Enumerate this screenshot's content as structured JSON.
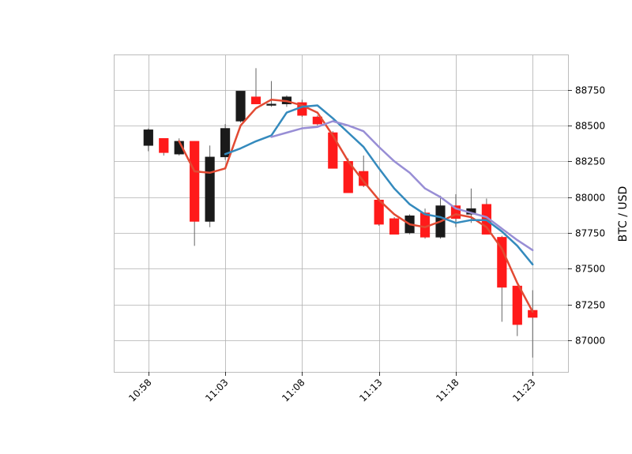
{
  "chart_data": {
    "type": "candlestick",
    "ylabel": "BTC / USD",
    "yaxis_side": "right",
    "ylim": [
      86780,
      88990
    ],
    "yticks": [
      87000,
      87250,
      87500,
      87750,
      88000,
      88250,
      88500,
      88750
    ],
    "ytick_labels": [
      "87000",
      "87250",
      "87500",
      "87750",
      "88000",
      "88250",
      "88500",
      "88750"
    ],
    "xlim": [
      -2.2,
      27.3
    ],
    "xticks": [
      0,
      5,
      10,
      15,
      20,
      25
    ],
    "xtick_labels": [
      "10:58",
      "11:03",
      "11:08",
      "11:13",
      "11:18",
      "11:23"
    ],
    "grid": true,
    "colors": {
      "up": "#1a1a1a",
      "down": "#ff1a1a",
      "wick": "#666666",
      "ma_short": "#e24a33",
      "ma_mid": "#348abd",
      "ma_long": "#988ed5",
      "grid": "#b0b0b0",
      "frame": "#bcbcbc"
    },
    "candles": [
      {
        "time": "10:58",
        "open": 88360,
        "high": 88480,
        "low": 88320,
        "close": 88470
      },
      {
        "time": "10:59",
        "open": 88410,
        "high": 88410,
        "low": 88290,
        "close": 88310
      },
      {
        "time": "11:00",
        "open": 88300,
        "high": 88410,
        "low": 88290,
        "close": 88390
      },
      {
        "time": "11:01",
        "open": 88390,
        "high": 88390,
        "low": 87660,
        "close": 87830
      },
      {
        "time": "11:02",
        "open": 87830,
        "high": 88360,
        "low": 87790,
        "close": 88280
      },
      {
        "time": "11:03",
        "open": 88280,
        "high": 88510,
        "low": 88260,
        "close": 88480
      },
      {
        "time": "11:04",
        "open": 88530,
        "high": 88740,
        "low": 88520,
        "close": 88740
      },
      {
        "time": "11:05",
        "open": 88700,
        "high": 88900,
        "low": 88650,
        "close": 88650
      },
      {
        "time": "11:06",
        "open": 88640,
        "high": 88810,
        "low": 88630,
        "close": 88650
      },
      {
        "time": "11:07",
        "open": 88650,
        "high": 88710,
        "low": 88630,
        "close": 88700
      },
      {
        "time": "11:08",
        "open": 88660,
        "high": 88680,
        "low": 88560,
        "close": 88570
      },
      {
        "time": "11:09",
        "open": 88560,
        "high": 88570,
        "low": 88500,
        "close": 88510
      },
      {
        "time": "11:10",
        "open": 88450,
        "high": 88460,
        "low": 88200,
        "close": 88200
      },
      {
        "time": "11:11",
        "open": 88250,
        "high": 88270,
        "low": 88030,
        "close": 88030
      },
      {
        "time": "11:12",
        "open": 88180,
        "high": 88290,
        "low": 88070,
        "close": 88080
      },
      {
        "time": "11:13",
        "open": 87980,
        "high": 87990,
        "low": 87800,
        "close": 87810
      },
      {
        "time": "11:14",
        "open": 87850,
        "high": 87860,
        "low": 87740,
        "close": 87740
      },
      {
        "time": "11:15",
        "open": 87750,
        "high": 87880,
        "low": 87740,
        "close": 87870
      },
      {
        "time": "11:16",
        "open": 87890,
        "high": 87920,
        "low": 87710,
        "close": 87720
      },
      {
        "time": "11:17",
        "open": 87720,
        "high": 88010,
        "low": 87710,
        "close": 87940
      },
      {
        "time": "11:18",
        "open": 87940,
        "high": 88020,
        "low": 87790,
        "close": 87850
      },
      {
        "time": "11:19",
        "open": 87880,
        "high": 88060,
        "low": 87820,
        "close": 87920
      },
      {
        "time": "11:20",
        "open": 87950,
        "high": 87990,
        "low": 87740,
        "close": 87740
      },
      {
        "time": "11:21",
        "open": 87720,
        "high": 87730,
        "low": 87130,
        "close": 87370
      },
      {
        "time": "11:22",
        "open": 87380,
        "high": 87380,
        "low": 87030,
        "close": 87110
      },
      {
        "time": "11:23",
        "open": 87210,
        "high": 87350,
        "low": 86880,
        "close": 87160
      }
    ],
    "series": [
      {
        "style": "ma_short",
        "points": [
          {
            "i": 2,
            "y": 88390
          },
          {
            "i": 3,
            "y": 88180
          },
          {
            "i": 4,
            "y": 88170
          },
          {
            "i": 5,
            "y": 88200
          },
          {
            "i": 6,
            "y": 88500
          },
          {
            "i": 7,
            "y": 88620
          },
          {
            "i": 8,
            "y": 88680
          },
          {
            "i": 9,
            "y": 88670
          },
          {
            "i": 10,
            "y": 88640
          },
          {
            "i": 11,
            "y": 88590
          },
          {
            "i": 12,
            "y": 88430
          },
          {
            "i": 13,
            "y": 88250
          },
          {
            "i": 14,
            "y": 88110
          },
          {
            "i": 15,
            "y": 87980
          },
          {
            "i": 16,
            "y": 87880
          },
          {
            "i": 17,
            "y": 87810
          },
          {
            "i": 18,
            "y": 87790
          },
          {
            "i": 19,
            "y": 87830
          },
          {
            "i": 20,
            "y": 87880
          },
          {
            "i": 21,
            "y": 87860
          },
          {
            "i": 22,
            "y": 87790
          },
          {
            "i": 23,
            "y": 87640
          },
          {
            "i": 24,
            "y": 87400
          },
          {
            "i": 25,
            "y": 87200
          }
        ]
      },
      {
        "style": "ma_mid",
        "points": [
          {
            "i": 5,
            "y": 88300
          },
          {
            "i": 6,
            "y": 88340
          },
          {
            "i": 7,
            "y": 88390
          },
          {
            "i": 8,
            "y": 88430
          },
          {
            "i": 9,
            "y": 88590
          },
          {
            "i": 10,
            "y": 88630
          },
          {
            "i": 11,
            "y": 88640
          },
          {
            "i": 12,
            "y": 88550
          },
          {
            "i": 13,
            "y": 88450
          },
          {
            "i": 14,
            "y": 88350
          },
          {
            "i": 15,
            "y": 88200
          },
          {
            "i": 16,
            "y": 88060
          },
          {
            "i": 17,
            "y": 87950
          },
          {
            "i": 18,
            "y": 87880
          },
          {
            "i": 19,
            "y": 87860
          },
          {
            "i": 20,
            "y": 87820
          },
          {
            "i": 21,
            "y": 87840
          },
          {
            "i": 22,
            "y": 87840
          },
          {
            "i": 23,
            "y": 87760
          },
          {
            "i": 24,
            "y": 87660
          },
          {
            "i": 25,
            "y": 87530
          }
        ]
      },
      {
        "style": "ma_long",
        "points": [
          {
            "i": 8,
            "y": 88420
          },
          {
            "i": 9,
            "y": 88450
          },
          {
            "i": 10,
            "y": 88480
          },
          {
            "i": 11,
            "y": 88490
          },
          {
            "i": 12,
            "y": 88530
          },
          {
            "i": 13,
            "y": 88500
          },
          {
            "i": 14,
            "y": 88460
          },
          {
            "i": 15,
            "y": 88350
          },
          {
            "i": 16,
            "y": 88250
          },
          {
            "i": 17,
            "y": 88170
          },
          {
            "i": 18,
            "y": 88060
          },
          {
            "i": 19,
            "y": 88000
          },
          {
            "i": 20,
            "y": 87920
          },
          {
            "i": 21,
            "y": 87890
          },
          {
            "i": 22,
            "y": 87860
          },
          {
            "i": 23,
            "y": 87780
          },
          {
            "i": 24,
            "y": 87700
          },
          {
            "i": 25,
            "y": 87630
          }
        ]
      }
    ]
  }
}
